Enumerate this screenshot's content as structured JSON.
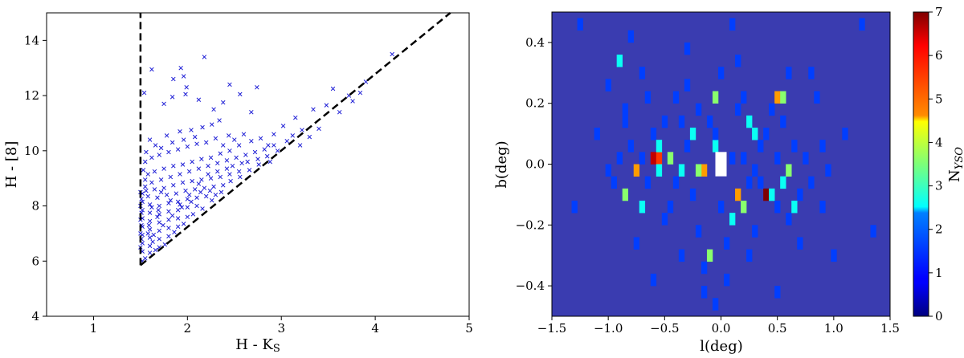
{
  "chart_data": [
    {
      "type": "scatter",
      "xlabel": "H - K",
      "xlabel_sub": "S",
      "ylabel": "H - [8]",
      "xlim": [
        0.5,
        5
      ],
      "ylim": [
        4,
        15
      ],
      "xticks": [
        1,
        2,
        3,
        4,
        5
      ],
      "yticks": [
        4,
        6,
        8,
        10,
        12,
        14
      ],
      "marker": "x",
      "marker_color": "#1f1fd6",
      "guide_lines": [
        {
          "x": [
            1.5,
            1.5
          ],
          "y": [
            5.85,
            15
          ]
        },
        {
          "x": [
            1.5,
            4.8
          ],
          "y": [
            5.85,
            15
          ]
        }
      ],
      "points": [
        [
          1.62,
          12.95
        ],
        [
          1.93,
          13.0
        ],
        [
          2.18,
          13.4
        ],
        [
          1.96,
          12.7
        ],
        [
          1.85,
          12.6
        ],
        [
          1.99,
          12.3
        ],
        [
          1.98,
          12.05
        ],
        [
          2.45,
          12.4
        ],
        [
          2.74,
          12.3
        ],
        [
          2.56,
          12.05
        ],
        [
          1.84,
          11.95
        ],
        [
          2.12,
          11.85
        ],
        [
          2.38,
          11.75
        ],
        [
          1.75,
          11.7
        ],
        [
          2.28,
          11.5
        ],
        [
          2.68,
          11.4
        ],
        [
          3.55,
          12.25
        ],
        [
          3.72,
          12.0
        ],
        [
          4.18,
          13.5
        ],
        [
          3.9,
          12.5
        ],
        [
          3.48,
          11.65
        ],
        [
          3.34,
          11.5
        ],
        [
          3.15,
          11.2
        ],
        [
          3.02,
          10.9
        ],
        [
          2.92,
          10.6
        ],
        [
          3.22,
          10.75
        ],
        [
          2.86,
          10.2
        ],
        [
          2.68,
          10.35
        ],
        [
          2.55,
          10.2
        ],
        [
          2.45,
          10.0
        ],
        [
          2.35,
          9.9
        ],
        [
          2.25,
          9.75
        ],
        [
          2.15,
          9.7
        ],
        [
          2.05,
          9.6
        ],
        [
          1.95,
          9.5
        ],
        [
          1.85,
          9.45
        ],
        [
          1.75,
          9.35
        ],
        [
          1.65,
          9.25
        ],
        [
          1.58,
          9.15
        ],
        [
          1.55,
          8.95
        ],
        [
          1.62,
          8.85
        ],
        [
          1.72,
          8.95
        ],
        [
          1.82,
          9.05
        ],
        [
          1.92,
          9.15
        ],
        [
          2.02,
          9.25
        ],
        [
          2.12,
          9.35
        ],
        [
          2.22,
          9.45
        ],
        [
          2.32,
          9.55
        ],
        [
          2.42,
          9.65
        ],
        [
          2.52,
          9.75
        ],
        [
          2.62,
          9.85
        ],
        [
          2.72,
          9.95
        ],
        [
          2.82,
          10.05
        ],
        [
          2.92,
          10.2
        ],
        [
          1.55,
          8.7
        ],
        [
          1.65,
          8.6
        ],
        [
          1.75,
          8.65
        ],
        [
          1.85,
          8.75
        ],
        [
          1.95,
          8.85
        ],
        [
          2.05,
          8.9
        ],
        [
          2.15,
          8.95
        ],
        [
          2.25,
          9.0
        ],
        [
          2.35,
          9.05
        ],
        [
          2.45,
          9.15
        ],
        [
          2.55,
          9.25
        ],
        [
          1.52,
          8.45
        ],
        [
          1.58,
          8.35
        ],
        [
          1.68,
          8.3
        ],
        [
          1.78,
          8.4
        ],
        [
          1.88,
          8.45
        ],
        [
          1.98,
          8.55
        ],
        [
          2.08,
          8.6
        ],
        [
          2.18,
          8.65
        ],
        [
          2.28,
          8.7
        ],
        [
          2.38,
          8.75
        ],
        [
          1.52,
          8.15
        ],
        [
          1.6,
          8.05
        ],
        [
          1.7,
          8.0
        ],
        [
          1.8,
          8.1
        ],
        [
          1.9,
          8.15
        ],
        [
          2.0,
          8.25
        ],
        [
          2.1,
          8.3
        ],
        [
          2.2,
          8.35
        ],
        [
          2.3,
          8.4
        ],
        [
          1.52,
          7.85
        ],
        [
          1.6,
          7.75
        ],
        [
          1.7,
          7.7
        ],
        [
          1.8,
          7.8
        ],
        [
          1.9,
          7.85
        ],
        [
          2.0,
          7.95
        ],
        [
          2.1,
          8.0
        ],
        [
          1.52,
          7.55
        ],
        [
          1.6,
          7.45
        ],
        [
          1.7,
          7.4
        ],
        [
          1.8,
          7.5
        ],
        [
          1.9,
          7.55
        ],
        [
          2.0,
          7.6
        ],
        [
          1.52,
          7.25
        ],
        [
          1.6,
          7.15
        ],
        [
          1.7,
          7.1
        ],
        [
          1.8,
          7.2
        ],
        [
          1.9,
          7.25
        ],
        [
          1.52,
          6.95
        ],
        [
          1.6,
          6.85
        ],
        [
          1.7,
          6.8
        ],
        [
          1.8,
          6.9
        ],
        [
          1.52,
          6.65
        ],
        [
          1.6,
          6.55
        ],
        [
          1.7,
          6.5
        ],
        [
          1.52,
          6.35
        ],
        [
          1.6,
          6.3
        ],
        [
          1.55,
          6.1
        ],
        [
          1.52,
          6.0
        ],
        [
          1.62,
          7.95
        ],
        [
          1.72,
          8.5
        ],
        [
          1.82,
          8.2
        ],
        [
          1.68,
          7.6
        ],
        [
          1.58,
          7.0
        ],
        [
          1.92,
          8.05
        ],
        [
          2.02,
          8.4
        ],
        [
          2.12,
          8.8
        ],
        [
          2.22,
          9.15
        ],
        [
          2.32,
          9.25
        ],
        [
          2.42,
          9.35
        ],
        [
          2.48,
          9.45
        ],
        [
          2.58,
          9.55
        ],
        [
          2.64,
          9.6
        ],
        [
          2.75,
          9.7
        ],
        [
          2.85,
          9.8
        ],
        [
          2.96,
          10.0
        ],
        [
          3.06,
          10.35
        ],
        [
          3.12,
          10.55
        ],
        [
          2.78,
          10.45
        ],
        [
          2.6,
          10.6
        ],
        [
          2.44,
          10.55
        ],
        [
          2.3,
          10.45
        ],
        [
          2.2,
          10.3
        ],
        [
          2.1,
          10.25
        ],
        [
          2.0,
          10.15
        ],
        [
          1.9,
          10.05
        ],
        [
          1.8,
          9.95
        ],
        [
          1.7,
          9.85
        ],
        [
          1.62,
          9.75
        ],
        [
          1.55,
          9.6
        ],
        [
          1.66,
          10.2
        ],
        [
          1.78,
          10.55
        ],
        [
          1.92,
          10.7
        ],
        [
          2.04,
          10.75
        ],
        [
          2.16,
          10.85
        ],
        [
          2.26,
          10.95
        ],
        [
          2.34,
          11.1
        ],
        [
          1.56,
          9.95
        ],
        [
          1.6,
          10.4
        ],
        [
          1.54,
          12.1
        ],
        [
          1.72,
          10.1
        ],
        [
          1.84,
          10.3
        ],
        [
          1.96,
          10.4
        ],
        [
          2.08,
          10.5
        ],
        [
          2.38,
          10.2
        ],
        [
          2.5,
          10.4
        ],
        [
          1.64,
          6.95
        ],
        [
          1.74,
          7.3
        ],
        [
          1.84,
          7.65
        ],
        [
          1.94,
          7.95
        ],
        [
          2.04,
          8.15
        ],
        [
          2.14,
          8.5
        ],
        [
          2.24,
          8.55
        ],
        [
          1.76,
          6.6
        ],
        [
          1.66,
          6.4
        ],
        [
          1.86,
          7.05
        ],
        [
          1.96,
          7.35
        ],
        [
          2.06,
          7.7
        ],
        [
          2.16,
          7.9
        ],
        [
          2.26,
          8.2
        ],
        [
          2.36,
          8.5
        ],
        [
          2.46,
          8.9
        ],
        [
          2.56,
          9.05
        ],
        [
          2.66,
          9.3
        ],
        [
          2.76,
          9.5
        ],
        [
          2.88,
          9.6
        ],
        [
          3.2,
          10.2
        ],
        [
          3.3,
          10.5
        ],
        [
          3.4,
          10.8
        ],
        [
          3.62,
          11.4
        ],
        [
          3.76,
          11.8
        ],
        [
          3.84,
          12.1
        ],
        [
          1.5,
          6.5
        ],
        [
          1.5,
          7.0
        ],
        [
          1.5,
          7.5
        ],
        [
          1.5,
          8.0
        ],
        [
          1.5,
          8.5
        ],
        [
          1.51,
          8.25
        ],
        [
          1.51,
          7.75
        ],
        [
          1.51,
          7.3
        ],
        [
          1.51,
          6.8
        ],
        [
          1.53,
          9.3
        ],
        [
          1.56,
          8.55
        ],
        [
          1.59,
          7.3
        ],
        [
          1.63,
          6.7
        ],
        [
          1.69,
          7.85
        ]
      ]
    },
    {
      "type": "heatmap",
      "xlabel": "l(deg)",
      "ylabel": "b(deg)",
      "colorbar_label": "N",
      "colorbar_label_sub": "YSO",
      "xlim": [
        -1.5,
        1.5
      ],
      "ylim": [
        -0.5,
        0.5
      ],
      "xticks": [
        -1.5,
        -1.0,
        -0.5,
        0.0,
        0.5,
        1.0,
        1.5
      ],
      "xtick_labels": [
        "−1.5",
        "−1.0",
        "−0.5",
        "0.0",
        "0.5",
        "1.0",
        "1.5"
      ],
      "yticks": [
        -0.4,
        -0.2,
        0.0,
        0.2,
        0.4
      ],
      "ytick_labels": [
        "−0.4",
        "−0.2",
        "0.0",
        "0.2",
        "0.4"
      ],
      "clim": [
        0,
        7
      ],
      "colorbar_ticks": [
        0,
        1,
        2,
        3,
        4,
        5,
        6,
        7
      ],
      "colormap": "jet",
      "background_value": 0,
      "bin_width_l": 0.05,
      "bin_height_b": 0.04,
      "masked_region": {
        "l": [
          -0.05,
          0.05
        ],
        "b": [
          -0.04,
          0.04
        ]
      },
      "cells": [
        [
          -0.6,
          0.02,
          6
        ],
        [
          -0.55,
          0.02,
          5
        ],
        [
          -0.75,
          -0.02,
          4
        ],
        [
          -0.15,
          -0.02,
          4
        ],
        [
          -0.2,
          -0.02,
          3
        ],
        [
          0.5,
          0.22,
          4
        ],
        [
          0.55,
          0.22,
          3
        ],
        [
          -0.05,
          0.22,
          3
        ],
        [
          0.4,
          -0.1,
          7
        ],
        [
          0.45,
          -0.1,
          2
        ],
        [
          0.15,
          -0.1,
          4
        ],
        [
          -0.85,
          -0.1,
          3
        ],
        [
          -0.55,
          -0.02,
          2
        ],
        [
          -0.45,
          0.02,
          3
        ],
        [
          -0.05,
          0.06,
          2
        ],
        [
          0.3,
          0.1,
          2
        ],
        [
          0.25,
          0.14,
          2
        ],
        [
          -0.25,
          0.1,
          2
        ],
        [
          -0.9,
          0.34,
          2
        ],
        [
          -0.1,
          -0.3,
          3
        ],
        [
          0.2,
          -0.14,
          3
        ],
        [
          0.55,
          -0.06,
          2
        ],
        [
          0.6,
          -0.02,
          3
        ],
        [
          -0.35,
          -0.02,
          2
        ],
        [
          -0.7,
          0.02,
          1
        ],
        [
          -0.8,
          0.06,
          1
        ],
        [
          -0.95,
          -0.06,
          1
        ],
        [
          -1.0,
          -0.02,
          1
        ],
        [
          -0.65,
          -0.06,
          1
        ],
        [
          -0.3,
          0.06,
          1
        ],
        [
          -0.4,
          -0.06,
          1
        ],
        [
          0.1,
          0.02,
          1
        ],
        [
          0.2,
          0.02,
          1
        ],
        [
          0.3,
          -0.02,
          1
        ],
        [
          0.35,
          0.06,
          1
        ],
        [
          0.65,
          0.06,
          1
        ],
        [
          0.75,
          0.02,
          1
        ],
        [
          0.8,
          -0.06,
          1
        ],
        [
          0.9,
          0.06,
          1
        ],
        [
          -0.5,
          0.14,
          1
        ],
        [
          -0.2,
          0.18,
          1
        ],
        [
          -0.3,
          0.26,
          1
        ],
        [
          0.0,
          0.3,
          1
        ],
        [
          0.15,
          0.34,
          1
        ],
        [
          0.6,
          0.3,
          1
        ],
        [
          0.85,
          0.22,
          1
        ],
        [
          -0.65,
          0.22,
          1
        ],
        [
          -0.85,
          0.18,
          1
        ],
        [
          -0.5,
          -0.18,
          1
        ],
        [
          -0.2,
          -0.22,
          1
        ],
        [
          0.05,
          -0.26,
          1
        ],
        [
          0.3,
          -0.22,
          1
        ],
        [
          0.6,
          -0.18,
          1
        ],
        [
          0.9,
          -0.14,
          1
        ],
        [
          -0.75,
          -0.26,
          1
        ],
        [
          -0.35,
          -0.3,
          1
        ],
        [
          0.25,
          -0.3,
          1
        ],
        [
          -0.6,
          -0.38,
          1
        ],
        [
          -0.15,
          -0.42,
          1
        ],
        [
          0.05,
          -0.38,
          1
        ],
        [
          -0.3,
          0.38,
          1
        ],
        [
          0.1,
          0.46,
          1
        ],
        [
          -0.8,
          0.42,
          1
        ],
        [
          -1.25,
          0.46,
          1
        ],
        [
          1.25,
          0.46,
          1
        ],
        [
          1.35,
          -0.22,
          1
        ],
        [
          -1.3,
          -0.14,
          1
        ],
        [
          1.1,
          0.1,
          1
        ],
        [
          -1.1,
          0.1,
          1
        ],
        [
          -0.45,
          -0.14,
          1
        ],
        [
          0.5,
          -0.14,
          1
        ],
        [
          -0.1,
          0.14,
          1
        ],
        [
          0.5,
          0.02,
          1
        ],
        [
          0.7,
          -0.1,
          1
        ],
        [
          -0.9,
          0.02,
          1
        ],
        [
          0.95,
          -0.02,
          1
        ],
        [
          0.55,
          0.14,
          1
        ],
        [
          -0.6,
          0.1,
          1
        ],
        [
          0.0,
          -0.14,
          1
        ],
        [
          -0.25,
          -0.1,
          1
        ],
        [
          0.35,
          -0.06,
          1
        ],
        [
          0.45,
          0.18,
          1
        ],
        [
          -0.7,
          0.3,
          1
        ],
        [
          0.8,
          0.3,
          1
        ],
        [
          -0.4,
          0.22,
          1
        ],
        [
          0.2,
          0.22,
          1
        ],
        [
          -0.15,
          -0.34,
          1
        ],
        [
          0.7,
          -0.26,
          1
        ],
        [
          -0.05,
          -0.46,
          1
        ],
        [
          0.5,
          -0.42,
          1
        ],
        [
          -1.0,
          0.26,
          1
        ],
        [
          1.0,
          -0.3,
          1
        ],
        [
          -0.55,
          0.06,
          2
        ],
        [
          0.25,
          -0.06,
          1
        ],
        [
          -0.35,
          0.14,
          1
        ],
        [
          0.1,
          -0.18,
          2
        ],
        [
          0.65,
          -0.14,
          2
        ],
        [
          -0.7,
          -0.14,
          2
        ],
        [
          -0.05,
          0.1,
          1
        ],
        [
          0.4,
          0.1,
          1
        ],
        [
          -0.85,
          0.14,
          1
        ],
        [
          0.15,
          0.18,
          1
        ]
      ]
    }
  ]
}
